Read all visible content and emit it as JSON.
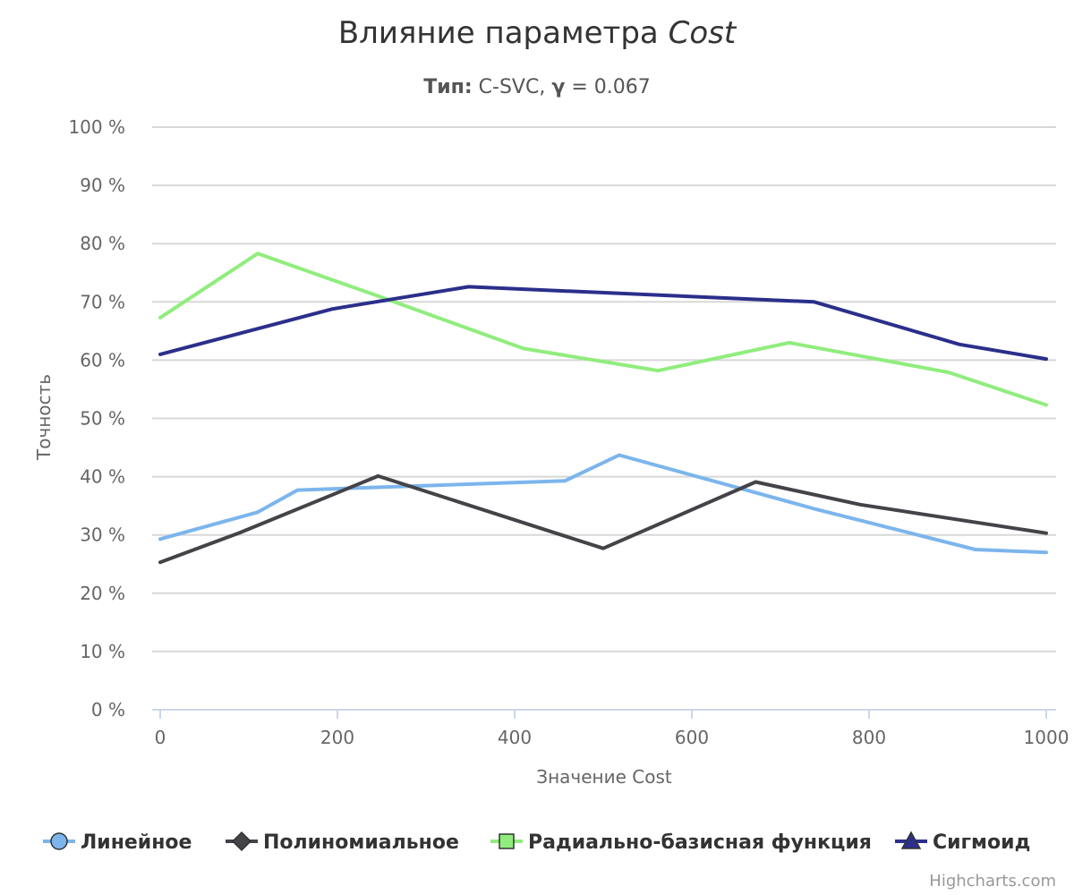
{
  "chart_data": {
    "type": "line",
    "title": "Влияние параметра",
    "title_italic": "Cost",
    "subtitle_bold": "Тип:",
    "subtitle_rest": " C-SVC, ",
    "subtitle_gamma": "γ",
    "subtitle_value": " = 0.067",
    "xlabel": "Значение Cost",
    "ylabel": "Точность",
    "xlim": [
      0,
      1000
    ],
    "ylim": [
      0,
      100
    ],
    "x_ticks": [
      0,
      200,
      400,
      600,
      800,
      1000
    ],
    "y_ticks": [
      0,
      10,
      20,
      30,
      40,
      50,
      60,
      70,
      80,
      90,
      100
    ],
    "y_tick_suffix": " %",
    "grid": true,
    "legend_position": "bottom",
    "series": [
      {
        "name": "Линейное",
        "color": "#7cb5ec",
        "marker": "circle",
        "x": [
          0,
          110,
          155,
          457,
          518,
          738,
          920,
          1000
        ],
        "y": [
          29.3,
          33.9,
          37.7,
          39.3,
          43.7,
          34.5,
          27.5,
          27.0
        ]
      },
      {
        "name": "Полиномиальное",
        "color": "#434348",
        "marker": "diamond",
        "x": [
          0,
          90,
          246,
          500,
          672,
          790,
          1000
        ],
        "y": [
          25.3,
          30.4,
          40.1,
          27.7,
          39.1,
          35.2,
          30.3
        ]
      },
      {
        "name": "Радиально-базисная функция",
        "color": "#90ed7d",
        "marker": "square",
        "x": [
          0,
          110,
          246,
          410,
          562,
          710,
          890,
          1000
        ],
        "y": [
          67.3,
          78.3,
          71.0,
          62.0,
          58.2,
          63.0,
          57.9,
          52.3
        ]
      },
      {
        "name": "Сигмоид",
        "color": "#2b2f8a",
        "marker": "triangle",
        "x": [
          0,
          195,
          348,
          738,
          902,
          1000
        ],
        "y": [
          61.0,
          68.8,
          72.6,
          70.0,
          62.7,
          60.2
        ]
      }
    ]
  },
  "credits": "Highcharts.com"
}
